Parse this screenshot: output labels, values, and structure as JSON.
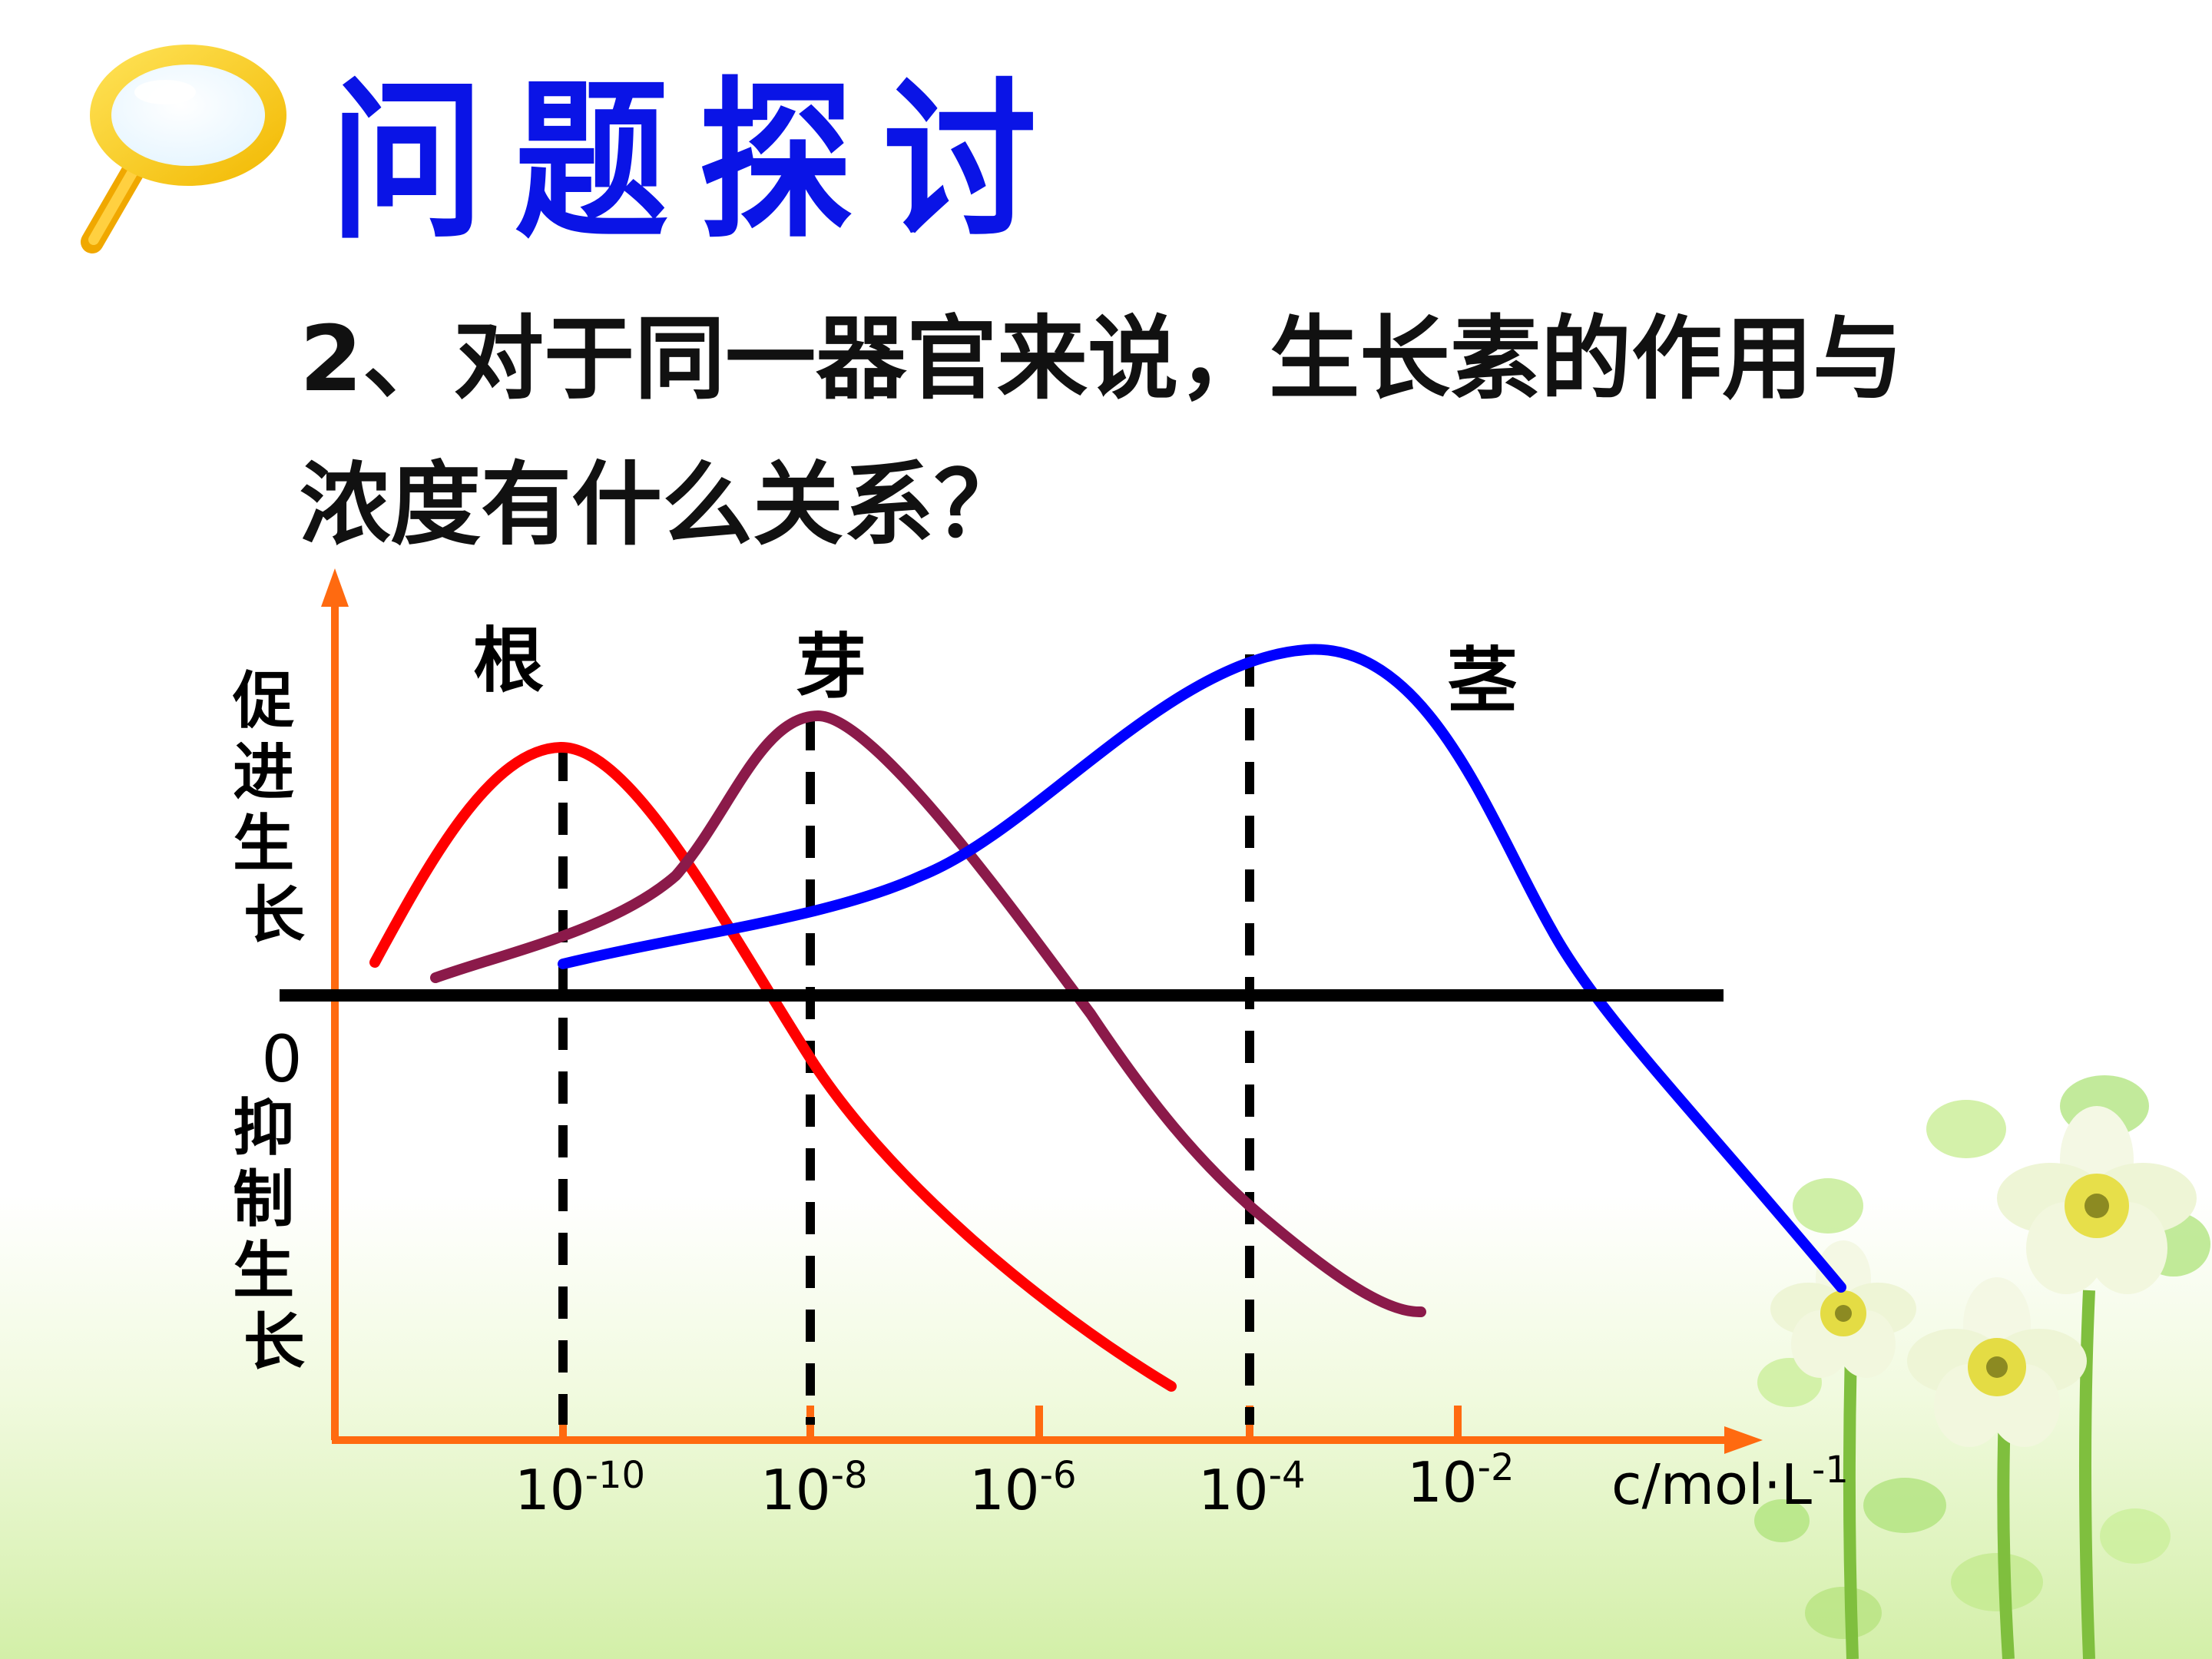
{
  "slide": {
    "title": "问题探讨",
    "question_line1": "2、对于同一器官来说，生长素的作用与",
    "question_line2": "浓度有什么关系？"
  },
  "diagram": {
    "y_label_promote": "促进生长",
    "y_zero": "0",
    "y_label_inhibit": "抑制生长",
    "x_ticks": [
      {
        "base": "10",
        "exp": "-10"
      },
      {
        "base": "10",
        "exp": "-8"
      },
      {
        "base": "10",
        "exp": "-6"
      },
      {
        "base": "10",
        "exp": "-4"
      },
      {
        "base": "10",
        "exp": "-2"
      }
    ],
    "x_unit": {
      "base": "c/mol·L",
      "exp": "-1"
    },
    "curves": [
      {
        "name": "根",
        "color": "#ff0000"
      },
      {
        "name": "芽",
        "color": "#8b1a4a"
      },
      {
        "name": "茎",
        "color": "#0000ff"
      }
    ],
    "axis_color": "#ff6a10",
    "title_color": "#0a14e6"
  }
}
